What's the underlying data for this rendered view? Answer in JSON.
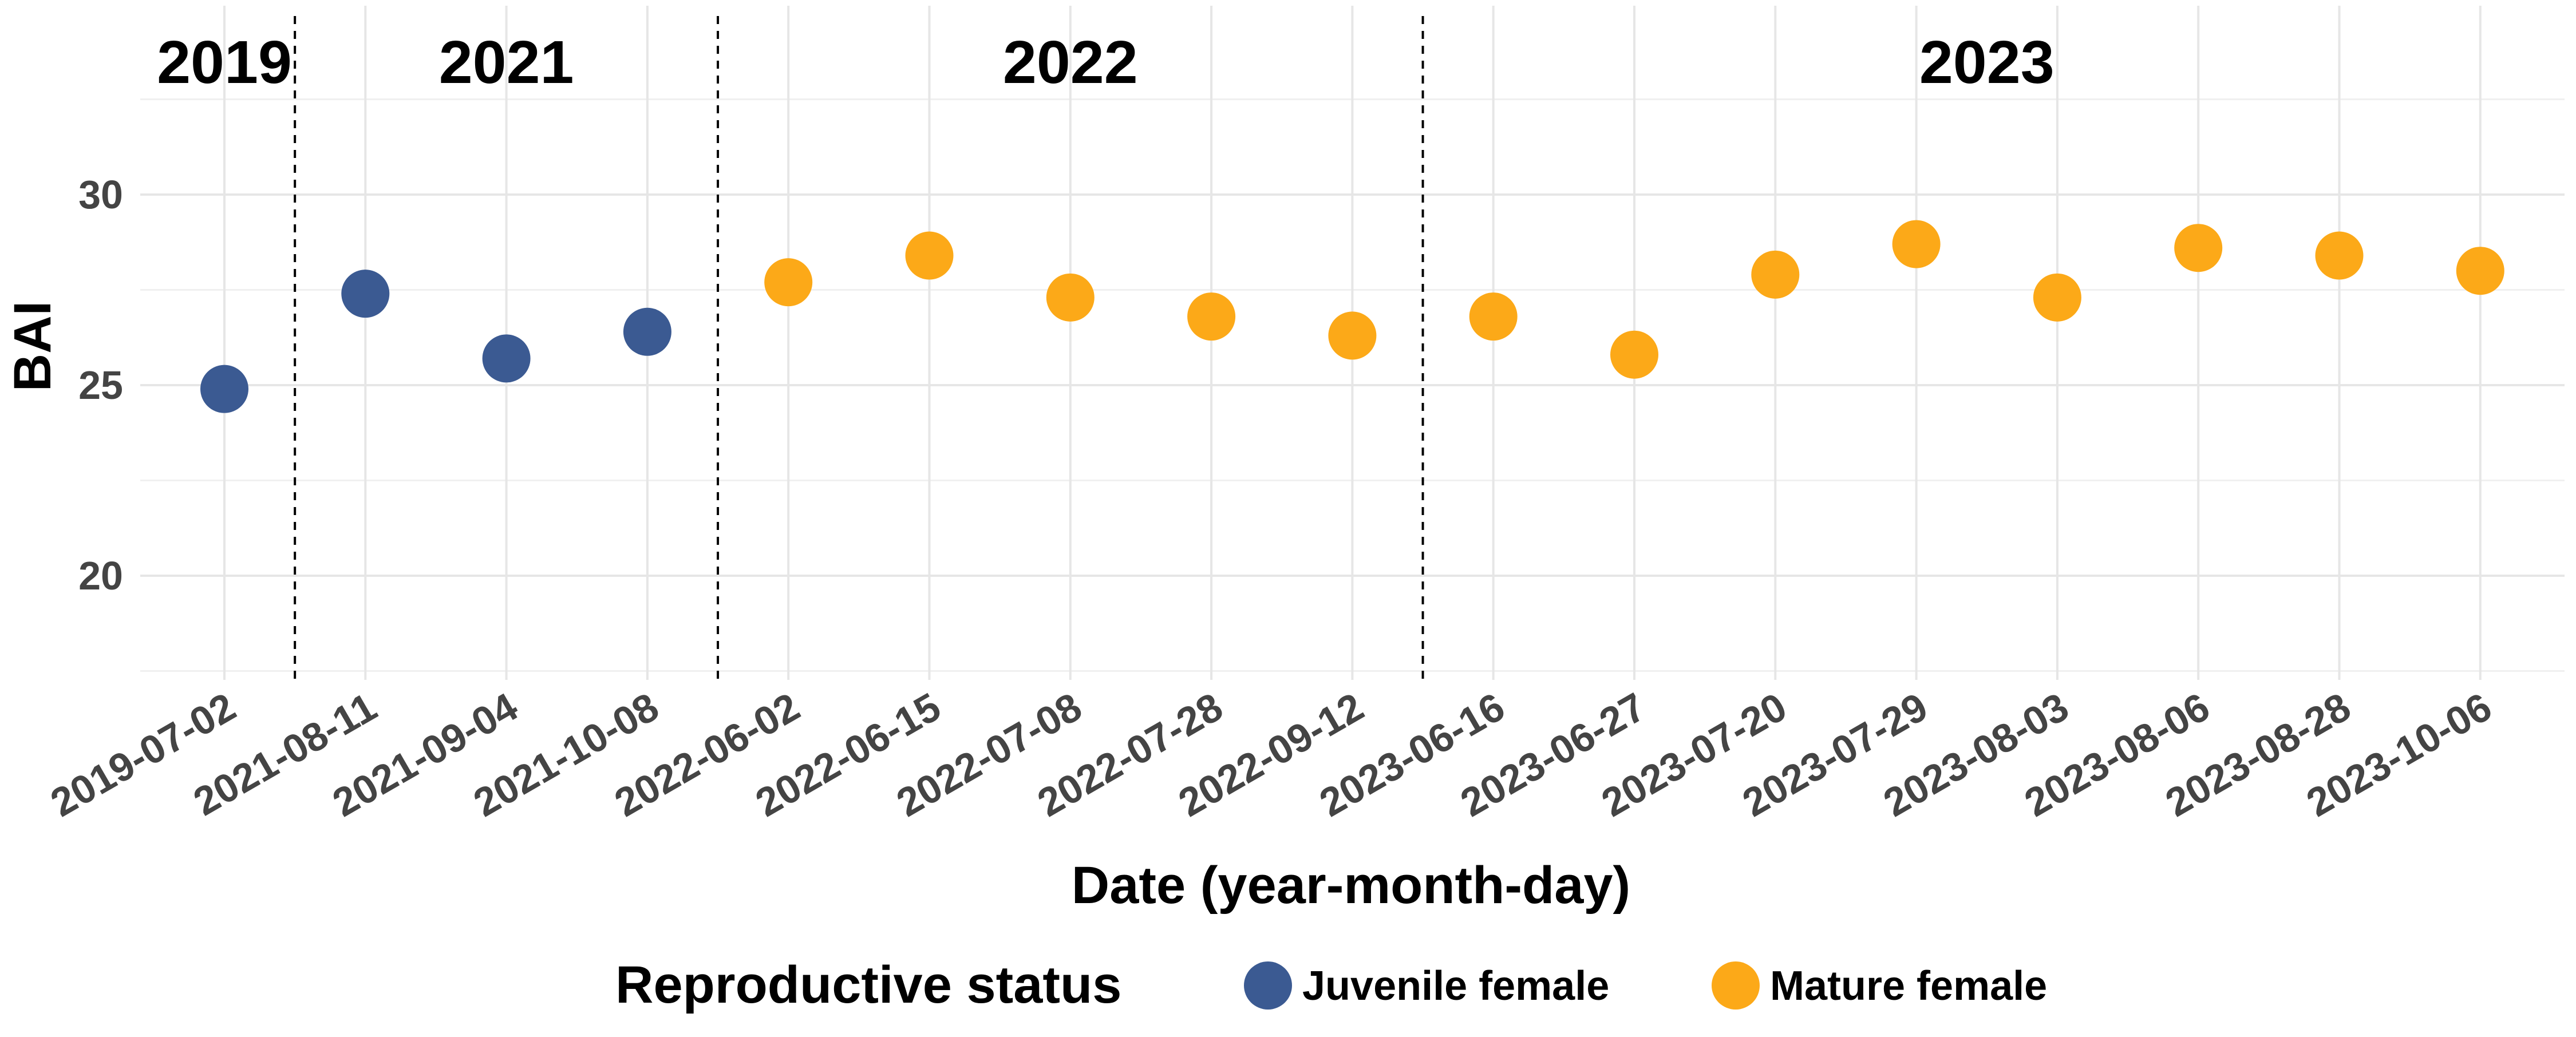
{
  "chart_data": {
    "type": "scatter",
    "xlabel": "Date (year-month-day)",
    "ylabel": "BAI",
    "ylim": [
      17.5,
      32.5
    ],
    "y_ticks": [
      20,
      25,
      30
    ],
    "grid": true,
    "categories": [
      "2019-07-02",
      "2021-08-11",
      "2021-09-04",
      "2021-10-08",
      "2022-06-02",
      "2022-06-15",
      "2022-07-08",
      "2022-07-28",
      "2022-09-12",
      "2023-06-16",
      "2023-06-27",
      "2023-07-20",
      "2023-07-29",
      "2023-08-03",
      "2023-08-06",
      "2023-08-28",
      "2023-10-06"
    ],
    "series": [
      {
        "name": "Juvenile female",
        "color": "#3b5a92",
        "points": [
          {
            "x": "2019-07-02",
            "y": 24.9
          },
          {
            "x": "2021-08-11",
            "y": 27.4
          },
          {
            "x": "2021-09-04",
            "y": 25.7
          },
          {
            "x": "2021-10-08",
            "y": 26.4
          }
        ]
      },
      {
        "name": "Mature female",
        "color": "#fca918",
        "points": [
          {
            "x": "2022-06-02",
            "y": 27.7
          },
          {
            "x": "2022-06-15",
            "y": 28.4
          },
          {
            "x": "2022-07-08",
            "y": 27.3
          },
          {
            "x": "2022-07-28",
            "y": 26.8
          },
          {
            "x": "2022-09-12",
            "y": 26.3
          },
          {
            "x": "2023-06-16",
            "y": 26.8
          },
          {
            "x": "2023-06-27",
            "y": 25.8
          },
          {
            "x": "2023-07-20",
            "y": 27.9
          },
          {
            "x": "2023-07-29",
            "y": 28.7
          },
          {
            "x": "2023-08-03",
            "y": 27.3
          },
          {
            "x": "2023-08-06",
            "y": 28.6
          },
          {
            "x": "2023-08-28",
            "y": 28.4
          },
          {
            "x": "2023-10-06",
            "y": 28.0
          }
        ]
      }
    ],
    "year_groups": [
      {
        "label": "2019",
        "first": "2019-07-02",
        "last": "2019-07-02"
      },
      {
        "label": "2021",
        "first": "2021-08-11",
        "last": "2021-10-08"
      },
      {
        "label": "2022",
        "first": "2022-06-02",
        "last": "2022-09-12"
      },
      {
        "label": "2023",
        "first": "2023-06-16",
        "last": "2023-10-06"
      }
    ],
    "legend": {
      "title": "Reproductive status",
      "position": "bottom"
    }
  }
}
